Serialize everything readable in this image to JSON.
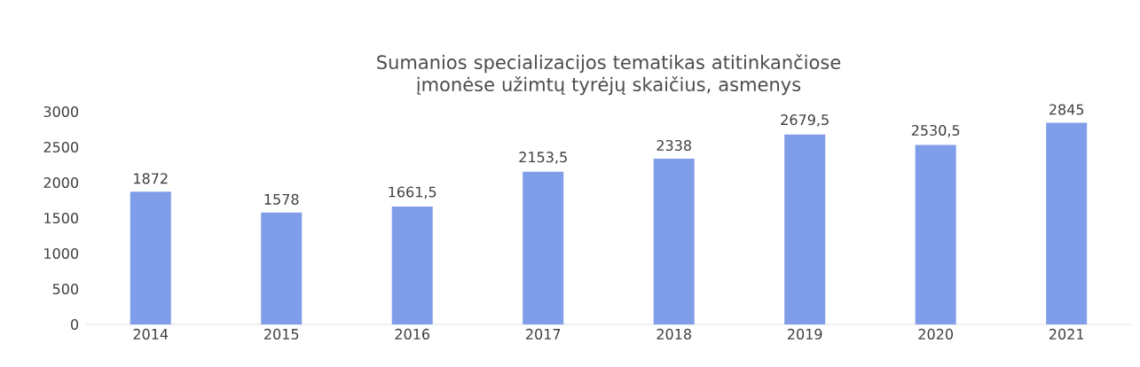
{
  "chart_data": {
    "type": "bar",
    "title": "Sumanios specializacijos tematikas atitinkančiose įmonėse užimtų tyrėjų skaičius, asmenys",
    "categories": [
      "2014",
      "2015",
      "2016",
      "2017",
      "2018",
      "2019",
      "2020",
      "2021"
    ],
    "values": [
      1872,
      1578,
      1661.5,
      2153.5,
      2338,
      2679.5,
      2530.5,
      2845
    ],
    "value_labels": [
      "1872",
      "1578",
      "1661,5",
      "2153,5",
      "2338",
      "2679,5",
      "2530,5",
      "2845"
    ],
    "color": "#7f9de8",
    "ylim": [
      0,
      3000
    ],
    "yticks": [
      0,
      500,
      1000,
      1500,
      2000,
      2500,
      3000
    ]
  }
}
